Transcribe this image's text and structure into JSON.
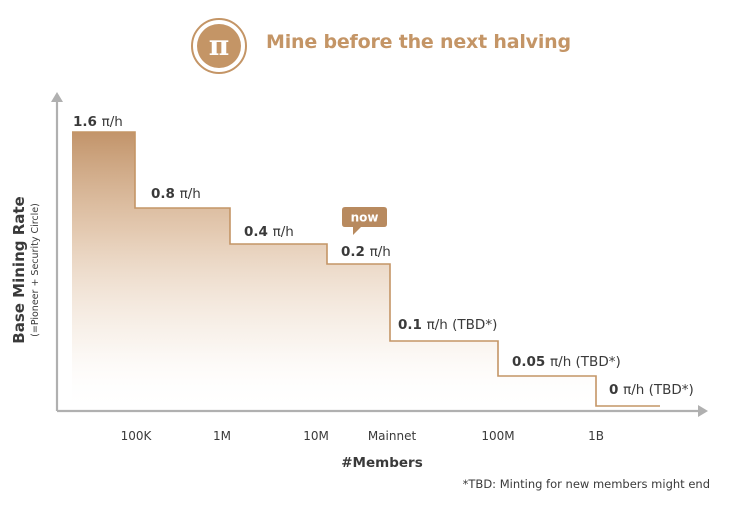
{
  "header": {
    "logo_symbol": "π",
    "title": "Mine before the next halving"
  },
  "colors": {
    "brand": "#c49566",
    "brand_dark": "#b88a5f",
    "axis": "#b0b0b0",
    "text": "#3a3a3a"
  },
  "chart_data": {
    "type": "area",
    "style": "step",
    "ylabel": "Base Mining Rate",
    "ylabel_sub": "(=Pioneer + Security Circle)",
    "xlabel": "#Members",
    "categories": [
      "",
      "100K",
      "1M",
      "10M",
      "Mainnet",
      "100M",
      "1B"
    ],
    "unit": "π/h",
    "steps": [
      {
        "from": "",
        "to": "100K",
        "value": 1.6,
        "value_label": "1.6",
        "suffix": ""
      },
      {
        "from": "100K",
        "to": "1M",
        "value": 0.8,
        "value_label": "0.8",
        "suffix": ""
      },
      {
        "from": "1M",
        "to": "10M",
        "value": 0.4,
        "value_label": "0.4",
        "suffix": ""
      },
      {
        "from": "10M",
        "to": "Mainnet",
        "value": 0.2,
        "value_label": "0.2",
        "suffix": ""
      },
      {
        "from": "Mainnet",
        "to": "100M",
        "value": 0.1,
        "value_label": "0.1",
        "suffix": "(TBD*)"
      },
      {
        "from": "100M",
        "to": "1B",
        "value": 0.05,
        "value_label": "0.05",
        "suffix": "(TBD*)"
      },
      {
        "from": "1B",
        "to": "",
        "value": 0,
        "value_label": "0",
        "suffix": "(TBD*)"
      }
    ],
    "annotations": [
      {
        "text": "now",
        "step": "0.2"
      }
    ],
    "footnote": "*TBD: Minting for new members might end",
    "grid": false,
    "legend": "none"
  }
}
